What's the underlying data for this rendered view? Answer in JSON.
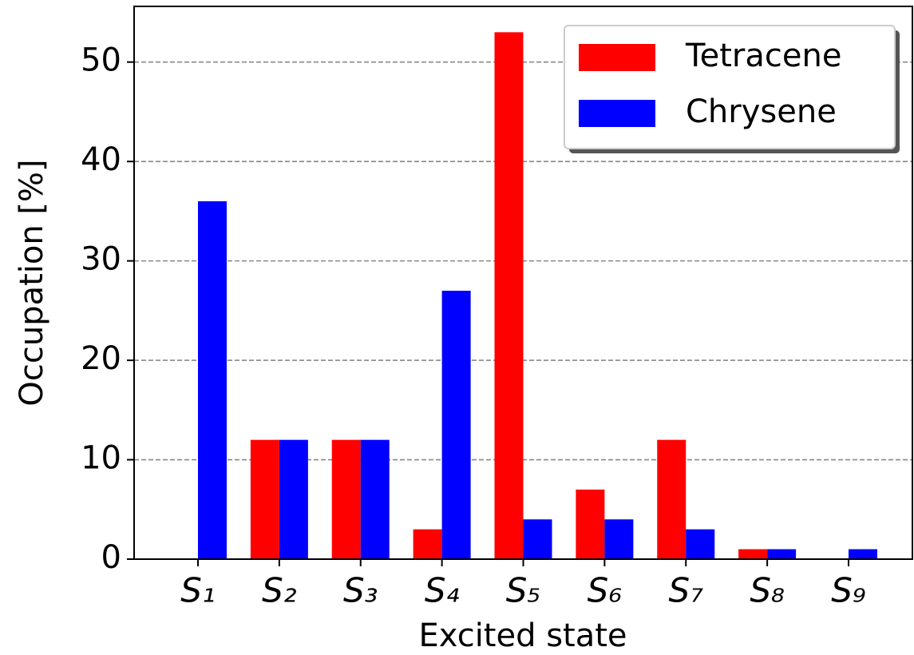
{
  "chart_data": {
    "type": "bar",
    "xlabel": "Excited state",
    "ylabel": "Occupation [%]",
    "categories": [
      "S₁",
      "S₂",
      "S₃",
      "S₄",
      "S₅",
      "S₆",
      "S₇",
      "S₈",
      "S₉"
    ],
    "series": [
      {
        "name": "Tetracene",
        "color": "#ff0000",
        "values": [
          0,
          12,
          12,
          3,
          53,
          7,
          12,
          1,
          0
        ]
      },
      {
        "name": "Chrysene",
        "color": "#0000ff",
        "values": [
          36,
          12,
          12,
          27,
          4,
          4,
          3,
          1,
          1
        ]
      }
    ],
    "ylim": [
      0,
      55.6
    ],
    "yticks": [
      0,
      10,
      20,
      30,
      40,
      50
    ],
    "grid": true,
    "legend": "upper right"
  }
}
